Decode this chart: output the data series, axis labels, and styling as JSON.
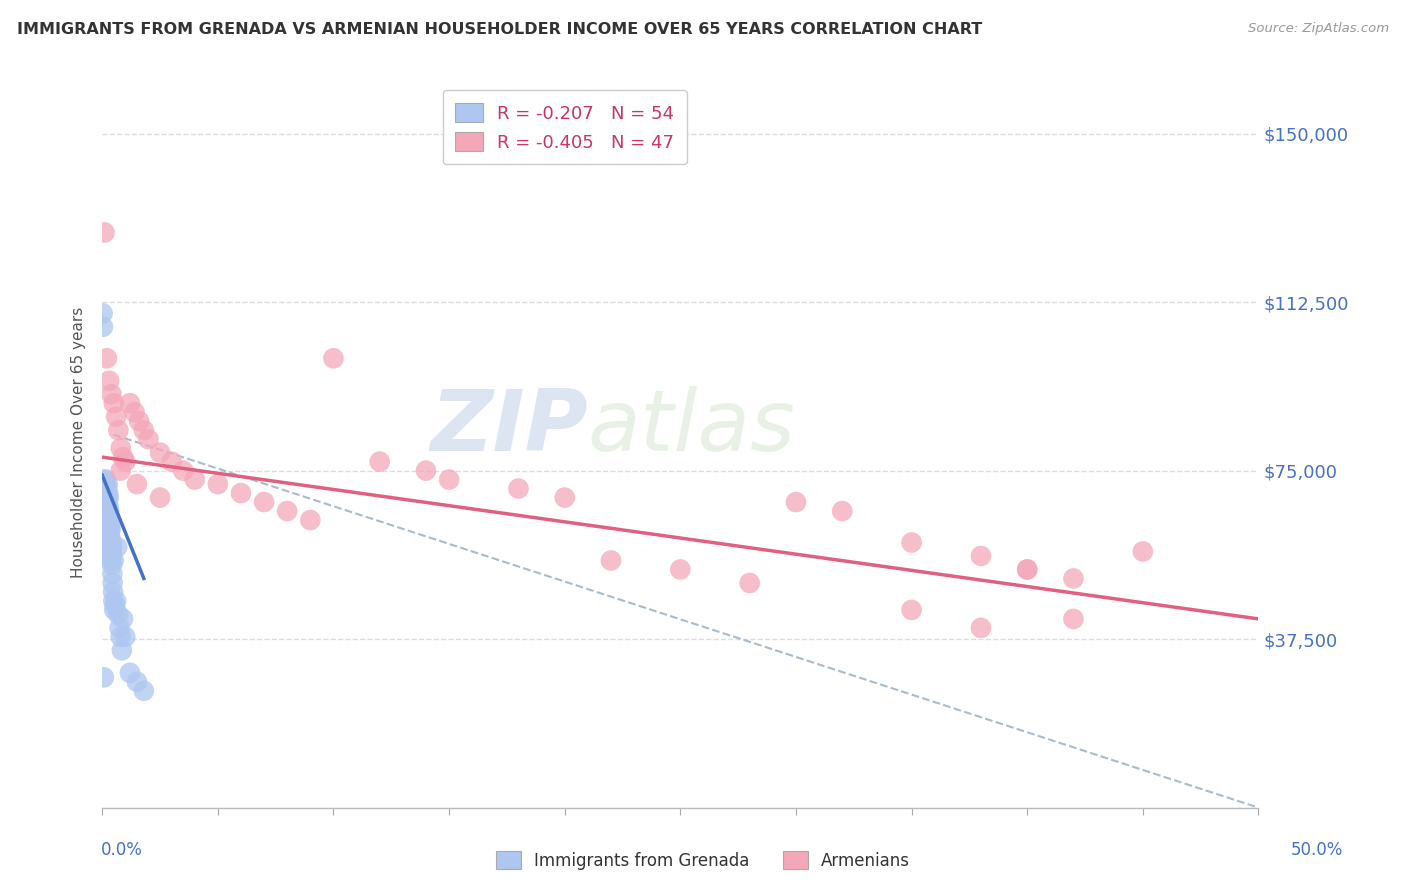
{
  "title": "IMMIGRANTS FROM GRENADA VS ARMENIAN HOUSEHOLDER INCOME OVER 65 YEARS CORRELATION CHART",
  "source": "Source: ZipAtlas.com",
  "ylabel": "Householder Income Over 65 years",
  "xlim": [
    0.0,
    0.5
  ],
  "ylim": [
    0,
    162500
  ],
  "yticks": [
    0,
    37500,
    75000,
    112500,
    150000
  ],
  "ytick_labels": [
    "",
    "$37,500",
    "$75,000",
    "$112,500",
    "$150,000"
  ],
  "legend1_label": "R = -0.207   N = 54",
  "legend2_label": "R = -0.405   N = 47",
  "legend1_color": "#aec6f0",
  "legend2_color": "#f4a7b9",
  "bottom_legend1": "Immigrants from Grenada",
  "bottom_legend2": "Armenians",
  "grenada_color": "#aec6f0",
  "armenian_color": "#f4a7b9",
  "trendline_grenada_color": "#4472c4",
  "trendline_armenian_color": "#e06080",
  "trendline_dashed_color": "#aabbcc",
  "watermark_zip": "ZIP",
  "watermark_atlas": "atlas",
  "background_color": "#ffffff",
  "grid_color": "#dddddd",
  "grenada_x": [
    0.0002,
    0.0003,
    0.0005,
    0.0007,
    0.0008,
    0.001,
    0.0012,
    0.0013,
    0.0014,
    0.0015,
    0.0016,
    0.0018,
    0.0019,
    0.002,
    0.0021,
    0.0022,
    0.0023,
    0.0024,
    0.0025,
    0.0026,
    0.0027,
    0.0028,
    0.0029,
    0.003,
    0.0032,
    0.0033,
    0.0034,
    0.0035,
    0.0036,
    0.0037,
    0.0038,
    0.0039,
    0.004,
    0.0041,
    0.0042,
    0.0043,
    0.0044,
    0.0045,
    0.0047,
    0.0048,
    0.005,
    0.0052,
    0.0055,
    0.006,
    0.0065,
    0.007,
    0.0075,
    0.008,
    0.0085,
    0.009,
    0.01,
    0.012,
    0.015,
    0.018
  ],
  "grenada_y": [
    110000,
    107000,
    62000,
    29000,
    58000,
    73000,
    68000,
    62000,
    58000,
    73000,
    72000,
    68000,
    65000,
    71000,
    69000,
    65000,
    68000,
    72000,
    63000,
    70000,
    67000,
    69000,
    64000,
    66000,
    62000,
    61000,
    63000,
    60000,
    58000,
    62000,
    55000,
    57000,
    59000,
    56000,
    54000,
    58000,
    52000,
    50000,
    48000,
    46000,
    55000,
    44000,
    45000,
    46000,
    58000,
    43000,
    40000,
    38000,
    35000,
    42000,
    38000,
    30000,
    28000,
    26000
  ],
  "armenian_x": [
    0.001,
    0.002,
    0.003,
    0.004,
    0.005,
    0.006,
    0.007,
    0.008,
    0.009,
    0.01,
    0.012,
    0.014,
    0.016,
    0.018,
    0.02,
    0.025,
    0.03,
    0.035,
    0.04,
    0.05,
    0.06,
    0.07,
    0.08,
    0.09,
    0.1,
    0.12,
    0.14,
    0.15,
    0.18,
    0.2,
    0.22,
    0.25,
    0.28,
    0.3,
    0.32,
    0.35,
    0.38,
    0.4,
    0.42,
    0.45,
    0.008,
    0.015,
    0.025,
    0.35,
    0.4,
    0.42,
    0.38
  ],
  "armenian_y": [
    128000,
    100000,
    95000,
    92000,
    90000,
    87000,
    84000,
    80000,
    78000,
    77000,
    90000,
    88000,
    86000,
    84000,
    82000,
    79000,
    77000,
    75000,
    73000,
    72000,
    70000,
    68000,
    66000,
    64000,
    100000,
    77000,
    75000,
    73000,
    71000,
    69000,
    55000,
    53000,
    50000,
    68000,
    66000,
    59000,
    56000,
    53000,
    51000,
    57000,
    75000,
    72000,
    69000,
    44000,
    53000,
    42000,
    40000
  ],
  "grenada_trend_x0": 0.0,
  "grenada_trend_x1": 0.018,
  "grenada_trend_y0": 74000,
  "grenada_trend_y1": 51000,
  "armenian_trend_x0": 0.0,
  "armenian_trend_x1": 0.5,
  "armenian_trend_y0": 78000,
  "armenian_trend_y1": 42000,
  "dashed_trend_x0": 0.005,
  "dashed_trend_x1": 0.5,
  "dashed_trend_y0": 83000,
  "dashed_trend_y1": 0
}
